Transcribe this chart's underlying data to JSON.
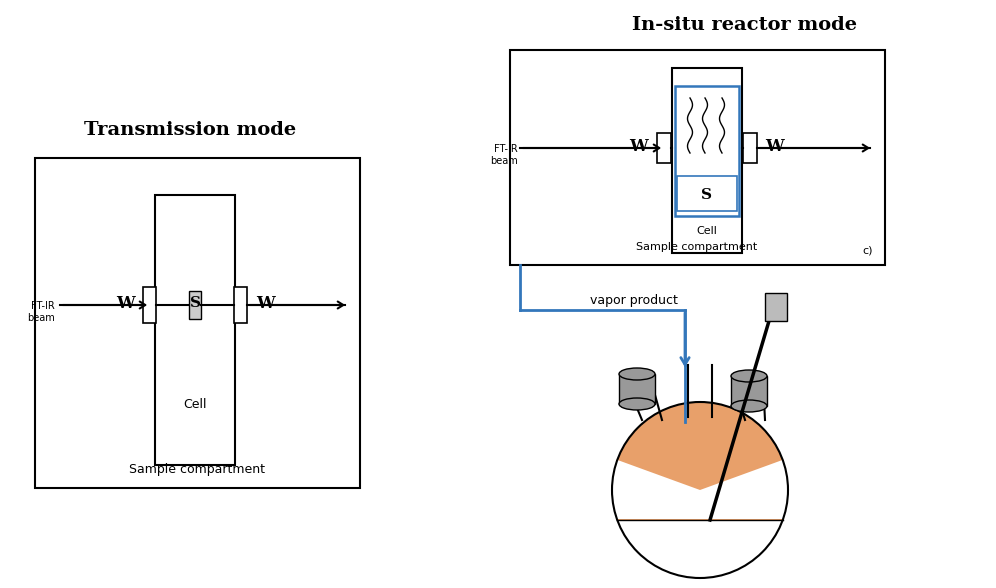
{
  "title_left": "Transmission mode",
  "title_right": "In-situ reactor mode",
  "label_ftir_beam_left": "FT-IR\nbeam",
  "label_ftir_beam_right": "FT-IR\nbeam",
  "label_w": "W",
  "label_s": "S",
  "label_cell": "Cell",
  "label_sample_compartment": "Sample compartment",
  "label_vapor_product": "vapor product",
  "label_c": "c)",
  "bg_color": "#ffffff",
  "black": "#000000",
  "blue_color": "#3377bb",
  "orange_color": "#e8a06a",
  "gray_color": "#999999",
  "lgray_color": "#bbbbbb"
}
